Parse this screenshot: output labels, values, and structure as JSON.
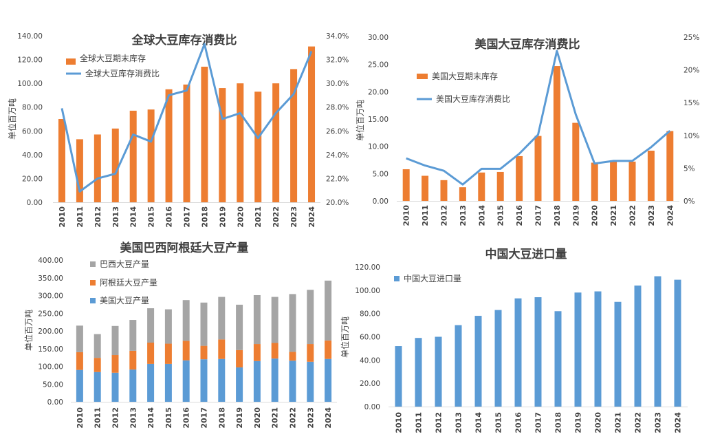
{
  "chart_data": [
    {
      "type": "bar+line",
      "title": "全球大豆库存消费比",
      "ylabel": "单位百万吨",
      "categories": [
        "2010",
        "2011",
        "2012",
        "2013",
        "2014",
        "2015",
        "2016",
        "2017",
        "2018",
        "2019",
        "2020",
        "2021",
        "2022",
        "2023",
        "2024"
      ],
      "y_ticks": [
        "0.00",
        "20.00",
        "40.00",
        "60.00",
        "80.00",
        "100.00",
        "120.00",
        "140.00"
      ],
      "ylim": [
        0,
        140
      ],
      "y2_ticks": [
        "20.0%",
        "22.0%",
        "24.0%",
        "26.0%",
        "28.0%",
        "30.0%",
        "32.0%",
        "34.0%"
      ],
      "y2lim": [
        20,
        34
      ],
      "legend_position": "top-left",
      "series": [
        {
          "name": "全球大豆期末库存",
          "kind": "bar",
          "axis": "left",
          "color": "#ED7D31",
          "values": [
            70,
            53,
            57,
            62,
            77,
            78,
            95,
            99,
            114,
            96,
            100,
            93,
            100,
            112,
            131
          ]
        },
        {
          "name": "全球大豆库存消费比",
          "kind": "line",
          "axis": "right",
          "color": "#5B9BD5",
          "values": [
            27.9,
            20.9,
            22.0,
            22.4,
            25.7,
            25.1,
            29.0,
            29.4,
            33.3,
            27.0,
            27.5,
            25.4,
            27.5,
            29.1,
            32.7
          ]
        }
      ]
    },
    {
      "type": "bar+line",
      "title": "美国大豆库存消费比",
      "ylabel": "单位百万吨",
      "categories": [
        "2010",
        "2011",
        "2012",
        "2013",
        "2014",
        "2015",
        "2016",
        "2017",
        "2018",
        "2019",
        "2020",
        "2021",
        "2022",
        "2023",
        "2024"
      ],
      "y_ticks": [
        "0.00",
        "5.00",
        "10.00",
        "15.00",
        "20.00",
        "25.00",
        "30.00"
      ],
      "ylim": [
        0,
        30
      ],
      "y2_ticks": [
        "0%",
        "5%",
        "10%",
        "15%",
        "20%",
        "25%"
      ],
      "y2lim": [
        0,
        25
      ],
      "legend_position": "top-left",
      "series": [
        {
          "name": "美国大豆期末库存",
          "kind": "bar",
          "axis": "left",
          "color": "#ED7D31",
          "values": [
            5.8,
            4.6,
            3.8,
            2.5,
            5.2,
            5.3,
            8.2,
            11.9,
            24.7,
            14.3,
            7.0,
            7.4,
            7.2,
            9.2,
            12.8
          ]
        },
        {
          "name": "美国大豆库存消费比",
          "kind": "line",
          "axis": "right",
          "color": "#5B9BD5",
          "values": [
            6.5,
            5.4,
            4.6,
            2.5,
            4.9,
            4.9,
            7.2,
            10.1,
            22.9,
            13.2,
            5.7,
            6.1,
            6.1,
            8.2,
            10.7
          ]
        }
      ]
    },
    {
      "type": "stacked-bar",
      "title": "美国巴西阿根廷大豆产量",
      "ylabel": "单位百万吨",
      "categories": [
        "2010",
        "2011",
        "2012",
        "2013",
        "2014",
        "2015",
        "2016",
        "2017",
        "2018",
        "2019",
        "2020",
        "2021",
        "2022",
        "2023",
        "2024"
      ],
      "y_ticks": [
        "0.00",
        "50.00",
        "100.00",
        "150.00",
        "200.00",
        "250.00",
        "300.00",
        "350.00",
        "400.00"
      ],
      "ylim": [
        0,
        400
      ],
      "legend_position": "top-left",
      "series": [
        {
          "name": "美国大豆产量",
          "color": "#5B9BD5",
          "values": [
            90,
            84,
            82,
            91,
            107,
            107,
            117,
            120,
            121,
            97,
            115,
            122,
            116,
            113,
            121
          ]
        },
        {
          "name": "阿根廷大豆产量",
          "color": "#ED7D31",
          "values": [
            50,
            40,
            50,
            53,
            60,
            57,
            55,
            38,
            55,
            49,
            48,
            44,
            25,
            50,
            52
          ]
        },
        {
          "name": "巴西大豆产量",
          "color": "#A5A5A5",
          "values": [
            75,
            67,
            82,
            87,
            97,
            97,
            115,
            122,
            120,
            128,
            138,
            130,
            163,
            153,
            169
          ]
        }
      ]
    },
    {
      "type": "bar",
      "title": "中国大豆进口量",
      "ylabel": "单位百万吨",
      "categories": [
        "2010",
        "2011",
        "2012",
        "2013",
        "2014",
        "2015",
        "2016",
        "2017",
        "2018",
        "2019",
        "2020",
        "2021",
        "2022",
        "2023",
        "2024"
      ],
      "y_ticks": [
        "0.00",
        "20.00",
        "40.00",
        "60.00",
        "80.00",
        "100.00",
        "120.00"
      ],
      "ylim": [
        0,
        120
      ],
      "legend_position": "top-left",
      "series": [
        {
          "name": "中国大豆进口量",
          "color": "#5B9BD5",
          "values": [
            52,
            59,
            60,
            70,
            78,
            83,
            93,
            94,
            82,
            98,
            99,
            90,
            104,
            112,
            109
          ]
        }
      ]
    }
  ]
}
